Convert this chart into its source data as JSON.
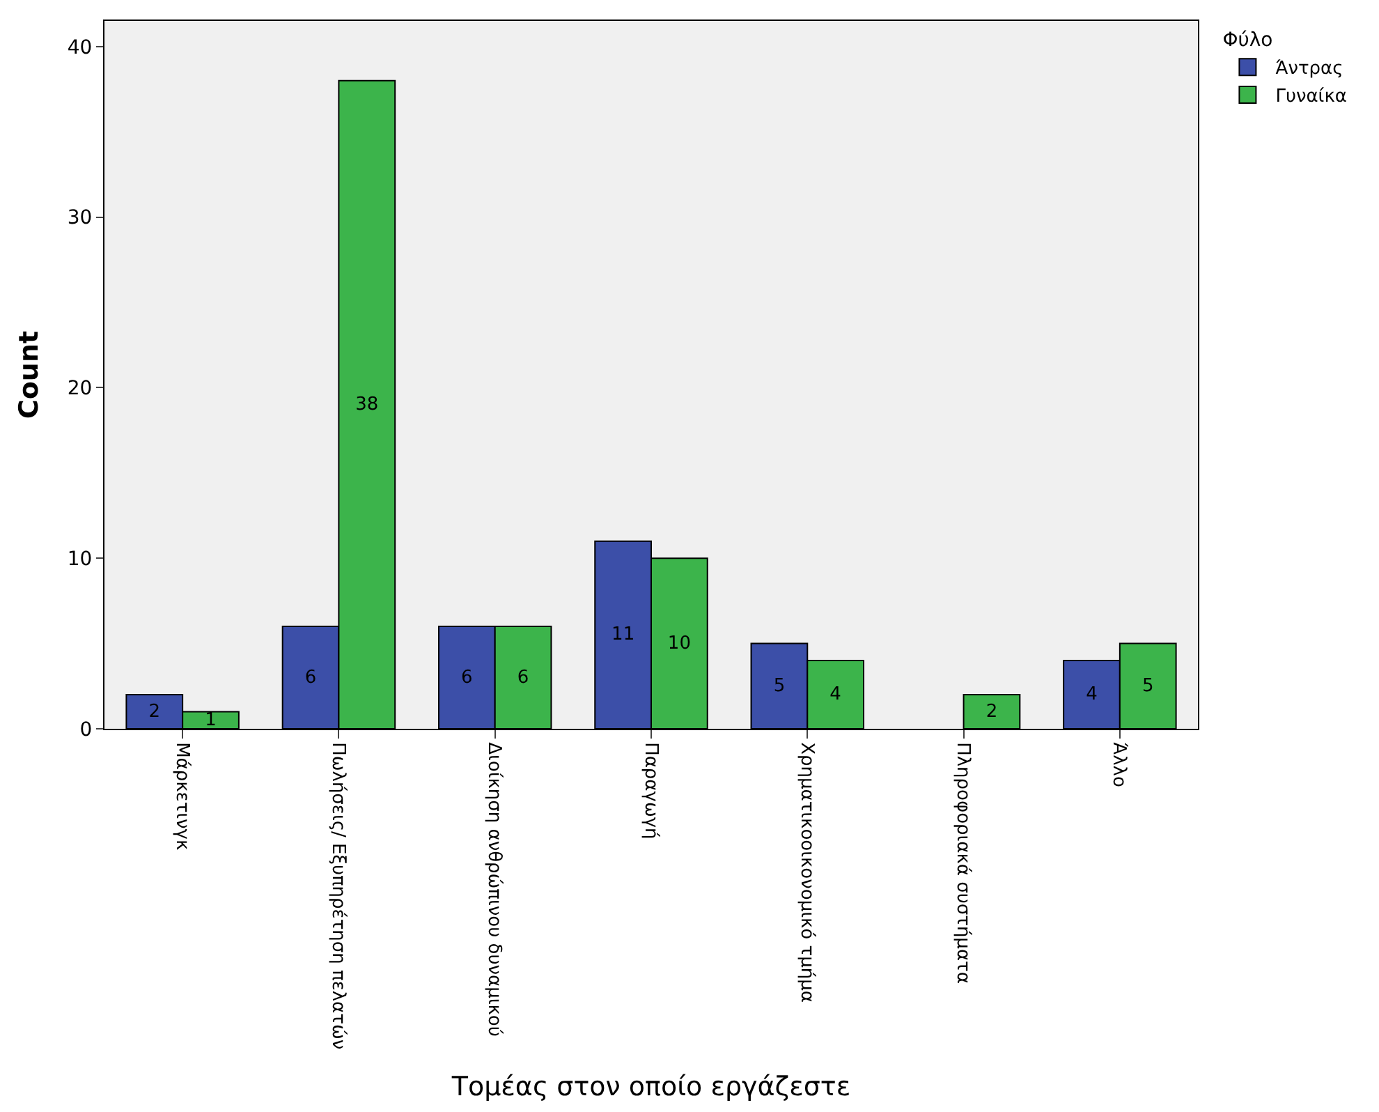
{
  "chart_data": {
    "type": "bar",
    "xlabel": "Τομέας στον οποίο εργάζεστε",
    "ylabel": "Count",
    "legend_title": "Φύλο",
    "legend": "top right",
    "grid": false,
    "data_labels": true,
    "categories": [
      "Μάρκετινγκ",
      "Πωλήσεις/ Εξυπηρέτηση πελατών",
      "Διοίκηση ανθρώπινου δυναμικού",
      "Παραγωγή",
      "Χρηματικοοικονομικό τμήμα",
      "Πληροφοριακά συστήματα",
      "Άλλο"
    ],
    "ylim": [
      0,
      41.5
    ],
    "yticks": [
      0,
      10,
      20,
      30,
      40
    ],
    "series": [
      {
        "name": "Άντρας",
        "color": "#3c4fa8",
        "values": [
          2,
          6,
          6,
          11,
          5,
          null,
          4
        ]
      },
      {
        "name": "Γυναίκα",
        "color": "#3cb44b",
        "values": [
          1,
          38,
          6,
          10,
          4,
          2,
          5
        ]
      }
    ]
  }
}
